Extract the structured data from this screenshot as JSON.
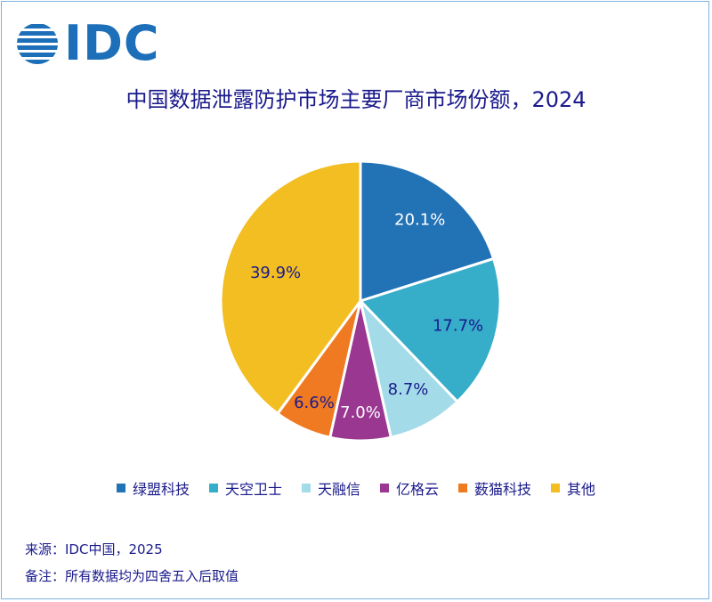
{
  "brand": {
    "logo_text": "IDC"
  },
  "chart_data": {
    "type": "pie",
    "title": "中国数据泄露防护市场主要厂商市场份额，2024",
    "slices": [
      {
        "label": "绿盟科技",
        "value": 20.1,
        "display": "20.1%",
        "color": "#2272b6",
        "label_color": "#ffffff"
      },
      {
        "label": "天空卫士",
        "value": 17.7,
        "display": "17.7%",
        "color": "#36adc9",
        "label_color": "#1a1a8c"
      },
      {
        "label": "天融信",
        "value": 8.7,
        "display": "8.7%",
        "color": "#a3dbe8",
        "label_color": "#1a1a8c"
      },
      {
        "label": "亿格云",
        "value": 7.0,
        "display": "7.0%",
        "color": "#993791",
        "label_color": "#ffffff"
      },
      {
        "label": "薮猫科技",
        "value": 6.6,
        "display": "6.6%",
        "color": "#f07a22",
        "label_color": "#1a1a8c"
      },
      {
        "label": "其他",
        "value": 39.9,
        "display": "39.9%",
        "color": "#f2be22",
        "label_color": "#1a1a8c"
      }
    ],
    "legend_position": "bottom"
  },
  "notes": {
    "source": "来源：IDC中国，2025",
    "remark": "备注：所有数据均为四舍五入后取值"
  }
}
